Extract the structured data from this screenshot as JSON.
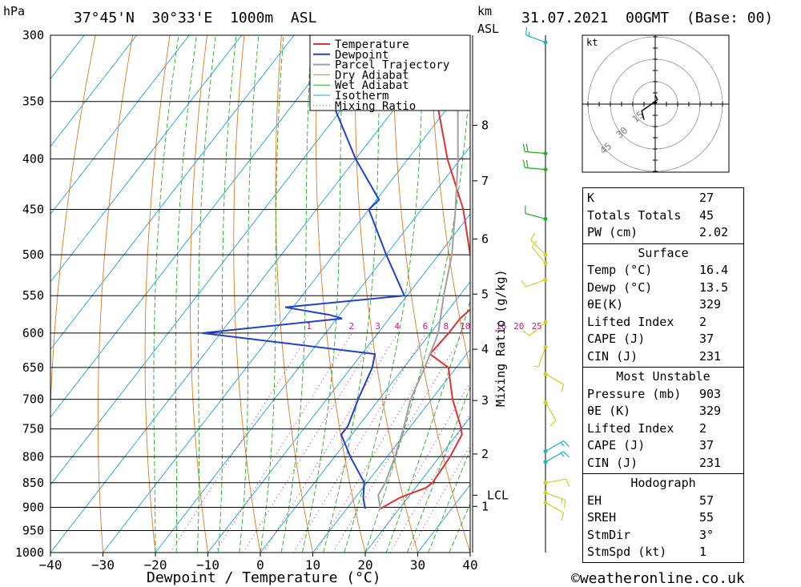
{
  "header": {
    "hpa_label": "hPa",
    "location": "37°45'N  30°33'E  1000m  ASL",
    "km_label": "km",
    "asl_label": "ASL",
    "datetime": "31.07.2021  00GMT  (Base: 00)"
  },
  "footer": {
    "copyright": "©weatheronline.co.uk"
  },
  "colors": {
    "temperature": "#e03030",
    "dewpoint": "#2040d0",
    "parcel": "#a0a0a0",
    "dry_adiabat": "#e07820",
    "wet_adiabat": "#20b020",
    "isotherm": "#20a0e0",
    "mixing_ratio": "#c02080"
  },
  "legend": [
    "Temperature",
    "Dewpoint",
    "Parcel Trajectory",
    "Dry Adiabat",
    "Wet Adiabat",
    "Isotherm",
    "Mixing Ratio"
  ],
  "chart_data": {
    "type": "line",
    "xlabel": "Dewpoint / Temperature (°C)",
    "ylabel": "hPa",
    "xlim": [
      -40,
      40
    ],
    "ylim": [
      1000,
      300
    ],
    "x_ticks": [
      "−40",
      "−30",
      "−20",
      "−10",
      "0",
      "10",
      "20",
      "30",
      "40"
    ],
    "pressure_levels": [
      300,
      350,
      400,
      450,
      500,
      550,
      600,
      650,
      700,
      750,
      800,
      850,
      900,
      950,
      1000
    ],
    "km_ticks": [
      {
        "km": "1",
        "p": 898
      },
      {
        "km": "2",
        "p": 795
      },
      {
        "km": "3",
        "p": 702
      },
      {
        "km": "4",
        "p": 623
      },
      {
        "km": "5",
        "p": 548
      },
      {
        "km": "6",
        "p": 482
      },
      {
        "km": "7",
        "p": 421
      },
      {
        "km": "8",
        "p": 370
      }
    ],
    "lcl_label": "LCL",
    "lcl_p": 875,
    "mixing_ratio_label": "Mixing Ratio (g/kg)",
    "mixing_ratio_values": [
      "1",
      "2",
      "3",
      "4",
      "6",
      "8",
      "10",
      "16",
      "20",
      "25"
    ],
    "series": [
      {
        "name": "Temperature",
        "points": [
          [
            903,
            16.4
          ],
          [
            880,
            18.5
          ],
          [
            860,
            22.0
          ],
          [
            850,
            22.5
          ],
          [
            800,
            22.0
          ],
          [
            760,
            21.0
          ],
          [
            745,
            19.5
          ],
          [
            700,
            14.0
          ],
          [
            650,
            8.5
          ],
          [
            630,
            3.0
          ],
          [
            600,
            3.5
          ],
          [
            580,
            3.5
          ],
          [
            560,
            4.5
          ],
          [
            550,
            3.5
          ],
          [
            500,
            -4.0
          ],
          [
            450,
            -12.0
          ],
          [
            400,
            -22.5
          ],
          [
            350,
            -33.0
          ],
          [
            340,
            -34.5
          ],
          [
            300,
            -38.5
          ]
        ]
      },
      {
        "name": "Dewpoint",
        "points": [
          [
            903,
            13.5
          ],
          [
            880,
            11.5
          ],
          [
            850,
            9.5
          ],
          [
            800,
            3.0
          ],
          [
            760,
            -2.0
          ],
          [
            745,
            -2.0
          ],
          [
            700,
            -4.0
          ],
          [
            650,
            -6.0
          ],
          [
            630,
            -7.5
          ],
          [
            600,
            -43.5
          ],
          [
            580,
            -19.0
          ],
          [
            575,
            -22.0
          ],
          [
            565,
            -31.5
          ],
          [
            550,
            -10.5
          ],
          [
            500,
            -20.0
          ],
          [
            450,
            -30.0
          ],
          [
            440,
            -29.5
          ],
          [
            400,
            -40.0
          ],
          [
            350,
            -53.0
          ],
          [
            345,
            -52.5
          ],
          [
            300,
            -67.0
          ]
        ]
      },
      {
        "name": "Parcel Trajectory",
        "points": [
          [
            903,
            16.4
          ],
          [
            875,
            14.0
          ],
          [
            850,
            13.5
          ],
          [
            800,
            11.5
          ],
          [
            750,
            9.0
          ],
          [
            700,
            6.0
          ],
          [
            650,
            4.0
          ],
          [
            600,
            1.5
          ],
          [
            550,
            -3.0
          ],
          [
            500,
            -7.5
          ],
          [
            450,
            -13.5
          ],
          [
            400,
            -20.5
          ],
          [
            350,
            -29.0
          ],
          [
            300,
            -40.5
          ]
        ]
      }
    ]
  },
  "hodograph": {
    "unit": "kt",
    "rings": [
      "15",
      "30",
      "45"
    ],
    "points": [
      [
        0,
        -4
      ],
      [
        -1,
        -2
      ],
      [
        3,
        1
      ],
      [
        6,
        3
      ],
      [
        5,
        7
      ]
    ]
  },
  "winds": [
    {
      "p": 305,
      "dir": 290,
      "spd": 15,
      "color": "#20b0c0"
    },
    {
      "p": 395,
      "dir": 275,
      "spd": 20,
      "color": "#20b020"
    },
    {
      "p": 410,
      "dir": 275,
      "spd": 20,
      "color": "#20b020"
    },
    {
      "p": 460,
      "dir": 285,
      "spd": 10,
      "color": "#20b020"
    },
    {
      "p": 500,
      "dir": 315,
      "spd": 10,
      "color": "#d0d020"
    },
    {
      "p": 510,
      "dir": 320,
      "spd": 10,
      "color": "#d0d020"
    },
    {
      "p": 530,
      "dir": 250,
      "spd": 10,
      "color": "#d0d020"
    },
    {
      "p": 585,
      "dir": 230,
      "spd": 10,
      "color": "#d0d020"
    },
    {
      "p": 620,
      "dir": 200,
      "spd": 5,
      "color": "#d0d020"
    },
    {
      "p": 660,
      "dir": 120,
      "spd": 10,
      "color": "#d0d020"
    },
    {
      "p": 705,
      "dir": 150,
      "spd": 10,
      "color": "#d0d020"
    },
    {
      "p": 790,
      "dir": 60,
      "spd": 15,
      "color": "#20b0c0"
    },
    {
      "p": 810,
      "dir": 60,
      "spd": 15,
      "color": "#20b0c0"
    },
    {
      "p": 850,
      "dir": 80,
      "spd": 10,
      "color": "#d0d020"
    },
    {
      "p": 870,
      "dir": 110,
      "spd": 15,
      "color": "#d0d020"
    },
    {
      "p": 890,
      "dir": 120,
      "spd": 10,
      "color": "#d0d020"
    }
  ],
  "indices": {
    "top": [
      {
        "k": "K",
        "v": "27"
      },
      {
        "k": "Totals Totals",
        "v": "45"
      },
      {
        "k": "PW (cm)",
        "v": "2.02"
      }
    ],
    "surface": {
      "title": "Surface",
      "rows": [
        {
          "k": "Temp (°C)",
          "v": "16.4"
        },
        {
          "k": "Dewp (°C)",
          "v": "13.5"
        },
        {
          "k": "θE(K)",
          "v": "329"
        },
        {
          "k": "Lifted Index",
          "v": "2"
        },
        {
          "k": "CAPE (J)",
          "v": "37"
        },
        {
          "k": "CIN (J)",
          "v": "231"
        }
      ]
    },
    "most_unstable": {
      "title": "Most Unstable",
      "rows": [
        {
          "k": "Pressure (mb)",
          "v": "903"
        },
        {
          "k": "θE (K)",
          "v": "329"
        },
        {
          "k": "Lifted Index",
          "v": "2"
        },
        {
          "k": "CAPE (J)",
          "v": "37"
        },
        {
          "k": "CIN (J)",
          "v": "231"
        }
      ]
    },
    "hodograph": {
      "title": "Hodograph",
      "rows": [
        {
          "k": "EH",
          "v": "57"
        },
        {
          "k": "SREH",
          "v": "55"
        },
        {
          "k": "StmDir",
          "v": "3°"
        },
        {
          "k": "StmSpd (kt)",
          "v": "1"
        }
      ]
    }
  }
}
